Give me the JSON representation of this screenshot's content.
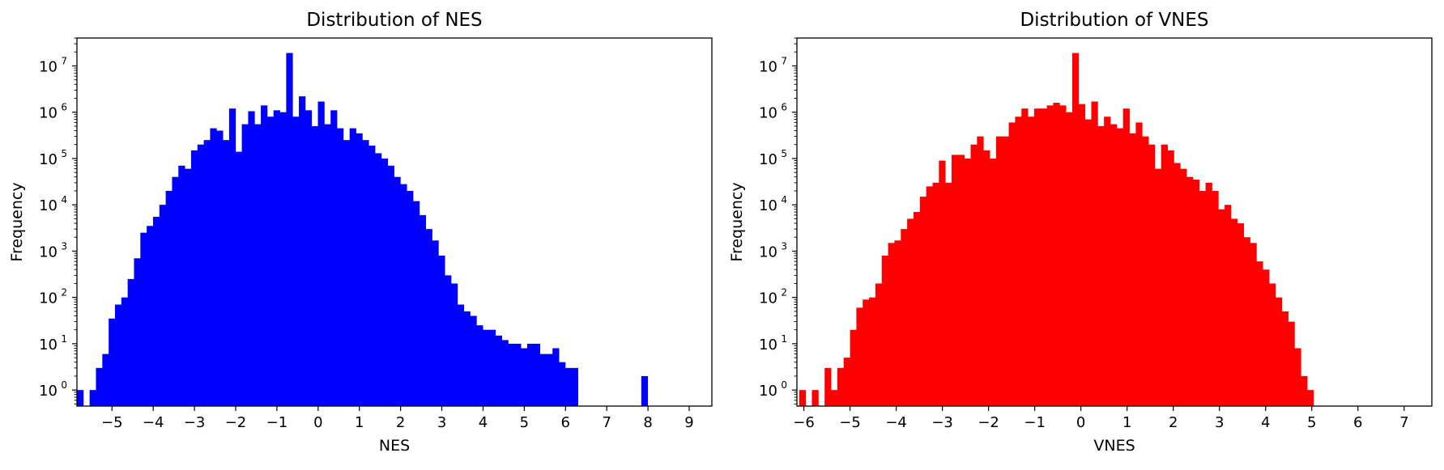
{
  "chart_data": [
    {
      "type": "histogram",
      "title": "Distribution of NES",
      "xlabel": "NES",
      "ylabel": "Frequency",
      "color": "#0000ff",
      "xlim": [
        -5.85,
        9.55
      ],
      "ylim": [
        0.45,
        40000000
      ],
      "y_scale": "log",
      "x_ticks": [
        -5,
        -4,
        -3,
        -2,
        -1,
        0,
        1,
        2,
        3,
        4,
        5,
        6,
        7,
        8,
        9
      ],
      "x_tick_labels": [
        "−5",
        "−4",
        "−3",
        "−2",
        "−1",
        "0",
        "1",
        "2",
        "3",
        "4",
        "5",
        "6",
        "7",
        "8",
        "9"
      ],
      "y_ticks": [
        1,
        10,
        100,
        1000,
        10000,
        100000,
        1000000,
        10000000
      ],
      "y_tick_base": "10",
      "y_tick_exponents": [
        "0",
        "1",
        "2",
        "3",
        "4",
        "5",
        "6",
        "7"
      ],
      "bins": {
        "start": -5.85,
        "width": 0.1538,
        "counts": [
          1,
          0,
          1,
          3,
          6,
          35,
          70,
          100,
          250,
          700,
          2500,
          3500,
          5500,
          10000,
          20000,
          40000,
          70000,
          60000,
          150000,
          200000,
          250000,
          450000,
          400000,
          250000,
          1200000,
          140000,
          550000,
          1050000,
          550000,
          1400000,
          800000,
          1100000,
          1000000,
          19000000,
          800000,
          2200000,
          1100000,
          500000,
          1700000,
          550000,
          1100000,
          450000,
          250000,
          450000,
          350000,
          250000,
          190000,
          130000,
          100000,
          70000,
          40000,
          28000,
          20000,
          12000,
          6000,
          3000,
          1700,
          800,
          300,
          200,
          70,
          50,
          40,
          25,
          20,
          20,
          15,
          12,
          10,
          10,
          8,
          10,
          10,
          6,
          6,
          8,
          4,
          3,
          3,
          0,
          0,
          0,
          0,
          0,
          0,
          0,
          0,
          0,
          0,
          2
        ]
      }
    },
    {
      "type": "histogram",
      "title": "Distribution of VNES",
      "xlabel": "VNES",
      "ylabel": "Frequency",
      "color": "#ff0000",
      "xlim": [
        -6.15,
        7.6
      ],
      "ylim": [
        0.45,
        40000000
      ],
      "y_scale": "log",
      "x_ticks": [
        -6,
        -5,
        -4,
        -3,
        -2,
        -1,
        0,
        1,
        2,
        3,
        4,
        5,
        6,
        7
      ],
      "x_tick_labels": [
        "−6",
        "−5",
        "−4",
        "−3",
        "−2",
        "−1",
        "0",
        "1",
        "2",
        "3",
        "4",
        "5",
        "6",
        "7"
      ],
      "y_ticks": [
        1,
        10,
        100,
        1000,
        10000,
        100000,
        1000000,
        10000000
      ],
      "y_tick_base": "10",
      "y_tick_exponents": [
        "0",
        "1",
        "2",
        "3",
        "4",
        "5",
        "6",
        "7"
      ],
      "bins": {
        "start": -6.1,
        "width": 0.1375,
        "counts": [
          1,
          0,
          1,
          0,
          3,
          1,
          3,
          5,
          20,
          60,
          90,
          100,
          200,
          800,
          1500,
          1700,
          3000,
          5000,
          7000,
          15000,
          25000,
          30000,
          90000,
          30000,
          120000,
          120000,
          100000,
          200000,
          300000,
          150000,
          100000,
          300000,
          300000,
          600000,
          800000,
          1200000,
          800000,
          1200000,
          1200000,
          1400000,
          1600000,
          1400000,
          1000000,
          19000000,
          1500000,
          700000,
          1700000,
          500000,
          800000,
          550000,
          450000,
          1200000,
          350000,
          600000,
          300000,
          200000,
          60000,
          200000,
          150000,
          80000,
          60000,
          40000,
          35000,
          20000,
          30000,
          20000,
          8000,
          10000,
          5000,
          4000,
          2000,
          1500,
          600,
          400,
          200,
          100,
          50,
          30,
          8,
          2,
          1,
          0,
          0,
          0,
          0,
          0,
          0,
          0,
          0
        ]
      }
    }
  ]
}
